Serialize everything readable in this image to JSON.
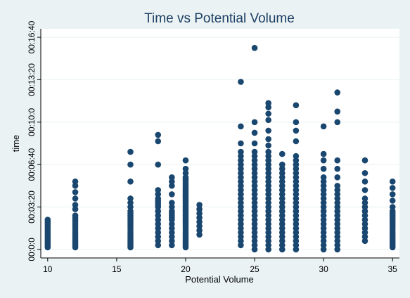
{
  "chart_data": {
    "type": "scatter",
    "title": "Time vs Potential Volume",
    "xlabel": "Potential Volume",
    "ylabel": "time",
    "xlim": [
      9.5,
      35.5
    ],
    "ylim": [
      -40,
      1040
    ],
    "x_ticks": [
      10,
      15,
      20,
      25,
      30,
      35
    ],
    "y_ticks": [
      {
        "value": 0,
        "label": "00:0:0"
      },
      {
        "value": 200,
        "label": "00:03:20"
      },
      {
        "value": 400,
        "label": "00:06:40"
      },
      {
        "value": 600,
        "label": "00:10:0"
      },
      {
        "value": 800,
        "label": "00:13:20"
      },
      {
        "value": 1000,
        "label": "00:16:40"
      }
    ],
    "grid": "horizontal",
    "legend": "none",
    "marker_color": "#1a476f",
    "points": [
      {
        "x": 10,
        "y": [
          10,
          20,
          30,
          40,
          50,
          60,
          70,
          80,
          90,
          100,
          110,
          120,
          130,
          140
        ]
      },
      {
        "x": 12,
        "y": [
          10,
          20,
          30,
          40,
          50,
          60,
          70,
          80,
          90,
          100,
          110,
          120,
          130,
          140,
          150,
          160,
          190,
          210,
          240,
          270,
          300,
          320
        ]
      },
      {
        "x": 16,
        "y": [
          10,
          20,
          30,
          40,
          50,
          60,
          70,
          80,
          90,
          100,
          110,
          120,
          130,
          140,
          150,
          160,
          170,
          180,
          200,
          220,
          240,
          320,
          400,
          460
        ]
      },
      {
        "x": 18,
        "y": [
          20,
          40,
          60,
          80,
          100,
          120,
          140,
          160,
          180,
          200,
          210,
          220,
          230,
          240,
          260,
          280,
          400,
          510,
          540
        ]
      },
      {
        "x": 19,
        "y": [
          20,
          40,
          60,
          80,
          100,
          120,
          140,
          150,
          160,
          170,
          180,
          200,
          220,
          260,
          300,
          320,
          340
        ]
      },
      {
        "x": 20,
        "y": [
          10,
          20,
          30,
          40,
          50,
          60,
          70,
          80,
          90,
          100,
          110,
          120,
          130,
          140,
          150,
          160,
          170,
          180,
          190,
          200,
          210,
          220,
          230,
          240,
          250,
          260,
          270,
          280,
          290,
          300,
          310,
          320,
          330,
          340,
          360,
          380,
          420
        ]
      },
      {
        "x": 21,
        "y": [
          70,
          90,
          110,
          130,
          150,
          170,
          190,
          210
        ]
      },
      {
        "x": 24,
        "y": [
          20,
          40,
          60,
          80,
          100,
          120,
          140,
          160,
          180,
          200,
          220,
          240,
          260,
          280,
          300,
          320,
          340,
          360,
          380,
          400,
          420,
          440,
          460,
          500,
          580,
          790
        ]
      },
      {
        "x": 25,
        "y": [
          0,
          20,
          40,
          60,
          80,
          100,
          120,
          140,
          160,
          180,
          200,
          220,
          240,
          260,
          280,
          300,
          320,
          340,
          360,
          380,
          400,
          420,
          440,
          460,
          500,
          550,
          600,
          950
        ]
      },
      {
        "x": 26,
        "y": [
          0,
          20,
          40,
          60,
          80,
          100,
          120,
          140,
          160,
          180,
          200,
          220,
          240,
          260,
          280,
          300,
          320,
          340,
          360,
          380,
          400,
          420,
          440,
          460,
          490,
          520,
          560,
          610,
          640,
          670,
          690
        ]
      },
      {
        "x": 27,
        "y": [
          0,
          20,
          40,
          60,
          80,
          100,
          120,
          140,
          160,
          180,
          200,
          220,
          240,
          260,
          280,
          300,
          320,
          340,
          360,
          380,
          400,
          450
        ]
      },
      {
        "x": 28,
        "y": [
          0,
          20,
          40,
          60,
          80,
          100,
          120,
          140,
          160,
          180,
          200,
          220,
          240,
          260,
          280,
          300,
          320,
          340,
          360,
          380,
          400,
          420,
          440,
          510,
          560,
          600,
          680
        ]
      },
      {
        "x": 30,
        "y": [
          0,
          20,
          40,
          60,
          80,
          100,
          120,
          140,
          160,
          180,
          200,
          220,
          240,
          260,
          280,
          300,
          320,
          340,
          380,
          420,
          450,
          580
        ]
      },
      {
        "x": 31,
        "y": [
          0,
          20,
          40,
          60,
          80,
          100,
          120,
          140,
          160,
          180,
          200,
          220,
          240,
          260,
          280,
          300,
          340,
          380,
          420,
          600,
          650,
          740
        ]
      },
      {
        "x": 33,
        "y": [
          40,
          60,
          80,
          100,
          120,
          140,
          160,
          180,
          200,
          220,
          240,
          280,
          320,
          360,
          420
        ]
      },
      {
        "x": 35,
        "y": [
          10,
          20,
          30,
          40,
          50,
          60,
          70,
          80,
          90,
          100,
          110,
          120,
          130,
          140,
          150,
          160,
          170,
          180,
          200,
          230,
          260,
          290,
          320
        ]
      }
    ]
  }
}
